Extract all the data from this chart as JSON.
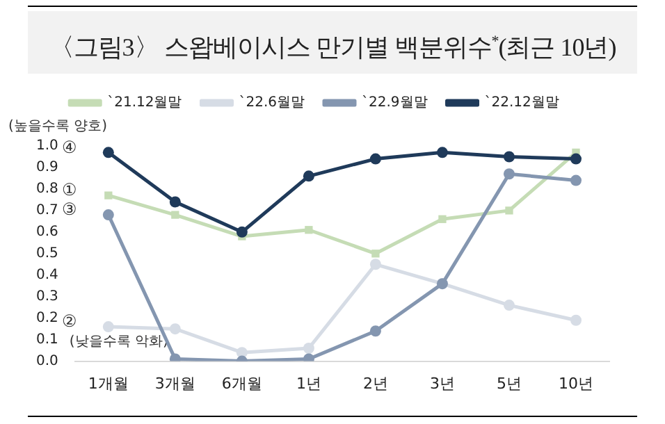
{
  "chart_data": {
    "type": "line",
    "title": "〈그림3〉 스왑베이시스 만기별 백분위수$^{*}$(최근 10년)",
    "categories": [
      "1개월",
      "3개월",
      "6개월",
      "1년",
      "2년",
      "3년",
      "5년",
      "10년"
    ],
    "series": [
      {
        "name": "`21.12월말",
        "color": "#c5dcb5",
        "marker": "square",
        "values": [
          0.77,
          0.68,
          0.58,
          0.61,
          0.5,
          0.66,
          0.7,
          0.97
        ]
      },
      {
        "name": "`22.6월말",
        "color": "#d6dce5",
        "marker": "circle",
        "values": [
          0.16,
          0.15,
          0.04,
          0.06,
          0.45,
          0.36,
          0.26,
          0.19
        ]
      },
      {
        "name": "`22.9월말",
        "color": "#8496b0",
        "marker": "circle",
        "values": [
          0.68,
          0.01,
          0.0,
          0.01,
          0.14,
          0.36,
          0.87,
          0.84
        ]
      },
      {
        "name": "`22.12월말",
        "color": "#1f3a5a",
        "marker": "circle",
        "values": [
          0.97,
          0.74,
          0.6,
          0.86,
          0.94,
          0.97,
          0.95,
          0.94
        ]
      }
    ],
    "ylim": [
      0,
      1
    ],
    "yticks": [
      {
        "value": 0,
        "label": "0.0"
      },
      {
        "value": 0.1,
        "label": "0.1"
      },
      {
        "value": 0.2,
        "label": "0.2"
      },
      {
        "value": 0.3,
        "label": "0.3"
      },
      {
        "value": 0.4,
        "label": "0.4"
      },
      {
        "value": 0.5,
        "label": "0.5"
      },
      {
        "value": 0.6,
        "label": "0.6"
      },
      {
        "value": 0.7,
        "label": "0.7"
      },
      {
        "value": 0.8,
        "label": "0.8"
      },
      {
        "value": 0.9,
        "label": "0.9"
      },
      {
        "value": 1,
        "label": "1.0"
      }
    ],
    "grid": false,
    "legend": "top",
    "annotations": [
      "(높을수록 양호)",
      "(낮을수록 악화)",
      {
        "text": "①",
        "x": "1개월",
        "y": 0.77
      },
      {
        "text": "②",
        "x": "1개월",
        "y": 0.16
      },
      {
        "text": "③",
        "x": "1개월",
        "y": 0.68
      },
      {
        "text": "④",
        "x": "1개월",
        "y": 0.97
      }
    ]
  }
}
